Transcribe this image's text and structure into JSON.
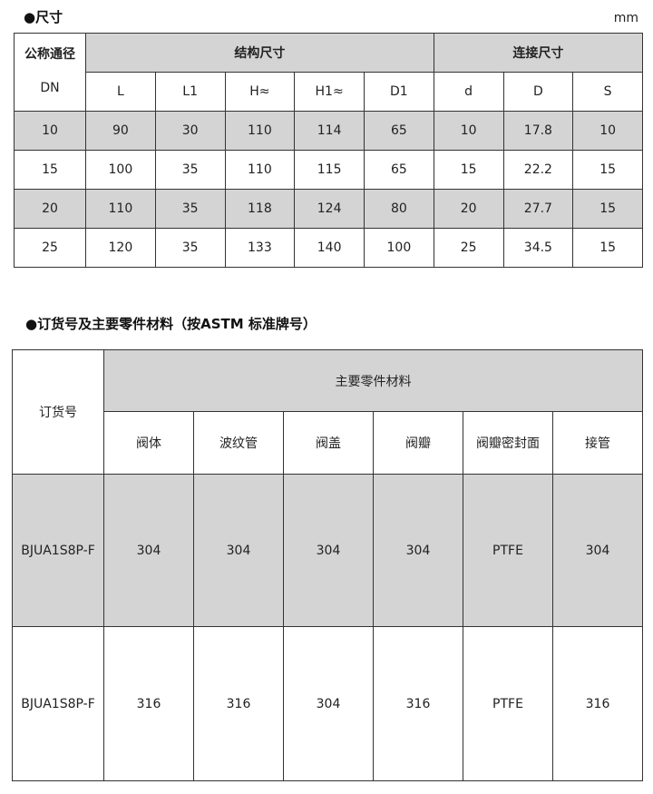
{
  "section1": {
    "title": "●尺寸",
    "unit": "mm",
    "group_dn": "公称通径",
    "group_struct": "结构尺寸",
    "group_conn": "连接尺寸",
    "columns": [
      "DN",
      "L",
      "L1",
      "H≈",
      "H1≈",
      "D1",
      "d",
      "D",
      "S"
    ],
    "rows": [
      [
        "10",
        "90",
        "30",
        "110",
        "114",
        "65",
        "10",
        "17.8",
        "10"
      ],
      [
        "15",
        "100",
        "35",
        "110",
        "115",
        "65",
        "15",
        "22.2",
        "15"
      ],
      [
        "20",
        "110",
        "35",
        "118",
        "124",
        "80",
        "20",
        "27.7",
        "15"
      ],
      [
        "25",
        "120",
        "35",
        "133",
        "140",
        "100",
        "25",
        "34.5",
        "15"
      ]
    ]
  },
  "section2": {
    "title": "●订货号及主要零件材料（按ASTM 标准牌号）",
    "order_header": "订货号",
    "group": "主要零件材料",
    "columns": [
      "阀体",
      "波纹管",
      "阀盖",
      "阀瓣",
      "阀瓣密封面",
      "接管"
    ],
    "rows": [
      [
        "BJUA1S8P-F",
        "304",
        "304",
        "304",
        "304",
        "PTFE",
        "304"
      ],
      [
        "BJUA1S8P-F",
        "316",
        "316",
        "304",
        "316",
        "PTFE",
        "316"
      ]
    ]
  }
}
